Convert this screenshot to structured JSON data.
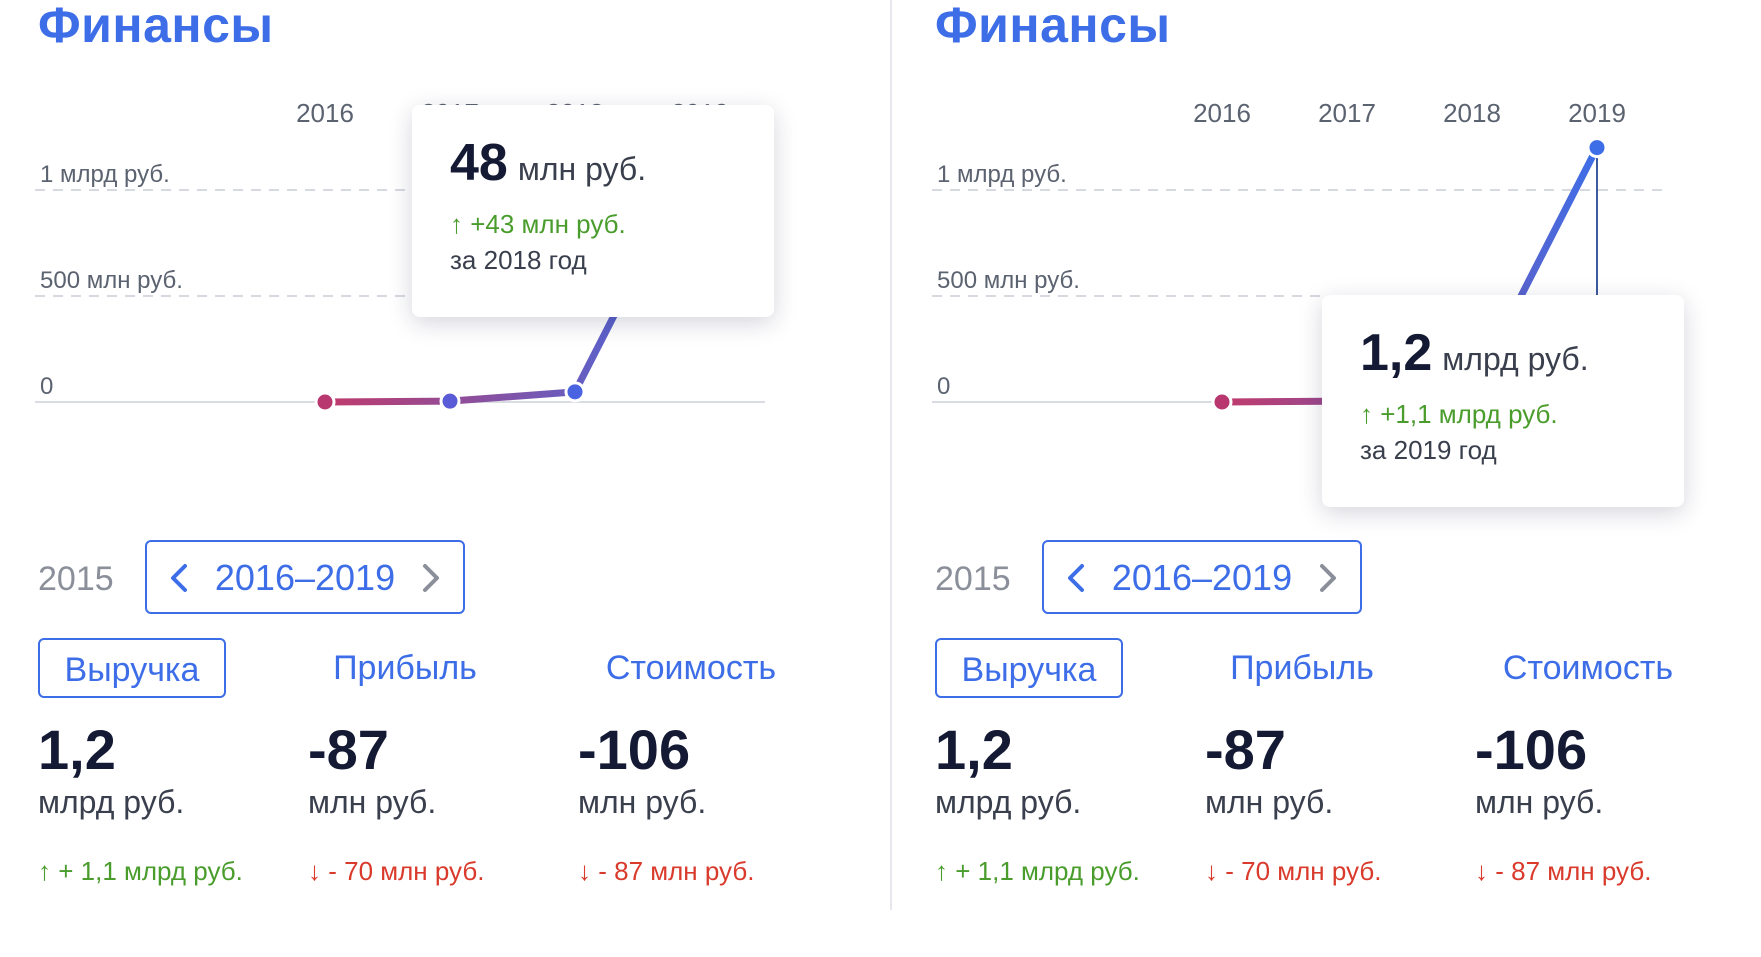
{
  "panels": [
    {
      "title": "Финансы",
      "tooltip": {
        "value": "48",
        "unit": "млн руб.",
        "change": "↑ +43 млн руб.",
        "period": "за 2018 год",
        "year_index": 2
      },
      "prev_year": "2015",
      "range_label": "2016–2019",
      "tabs": [
        "Выручка",
        "Прибыль",
        "Стоимость"
      ],
      "metrics": [
        {
          "value": "1,2",
          "unit": "млрд руб.",
          "change": "↑ + 1,1 млрд руб.",
          "direction": "up"
        },
        {
          "value": "-87",
          "unit": "млн руб.",
          "change": "↓ - 70 млн руб.",
          "direction": "down"
        },
        {
          "value": "-106",
          "unit": "млн руб.",
          "change": "↓ - 87 млн руб.",
          "direction": "down"
        }
      ]
    },
    {
      "title": "Финансы",
      "tooltip": {
        "value": "1,2",
        "unit": "млрд руб.",
        "change": "↑ +1,1 млрд руб.",
        "period": "за 2019 год",
        "year_index": 3
      },
      "prev_year": "2015",
      "range_label": "2016–2019",
      "tabs": [
        "Выручка",
        "Прибыль",
        "Стоимость"
      ],
      "metrics": [
        {
          "value": "1,2",
          "unit": "млрд руб.",
          "change": "↑ + 1,1 млрд руб.",
          "direction": "up"
        },
        {
          "value": "-87",
          "unit": "млн руб.",
          "change": "↓ - 70 млн руб.",
          "direction": "down"
        },
        {
          "value": "-106",
          "unit": "млн руб.",
          "change": "↓ - 87 млн руб.",
          "direction": "down"
        }
      ]
    }
  ],
  "chart_data": {
    "type": "line",
    "title": "Финансы",
    "x": [
      "2016",
      "2017",
      "2018",
      "2019"
    ],
    "series": [
      {
        "values": [
          0.0,
          0.004,
          0.048,
          1.2
        ]
      }
    ],
    "y_unit": "млрд руб.",
    "y_ticks": [
      0,
      0.5,
      1
    ],
    "y_tick_labels": [
      "0",
      "500 млн руб.",
      "1 млрд руб."
    ],
    "ylim": [
      0,
      1.2
    ],
    "grid": true,
    "line_color_start": "#c03a6b",
    "line_color_end": "#3d6ee8"
  },
  "colors": {
    "accent": "#3d6ee8",
    "up": "#4a9d2c",
    "down": "#d93a2b"
  }
}
